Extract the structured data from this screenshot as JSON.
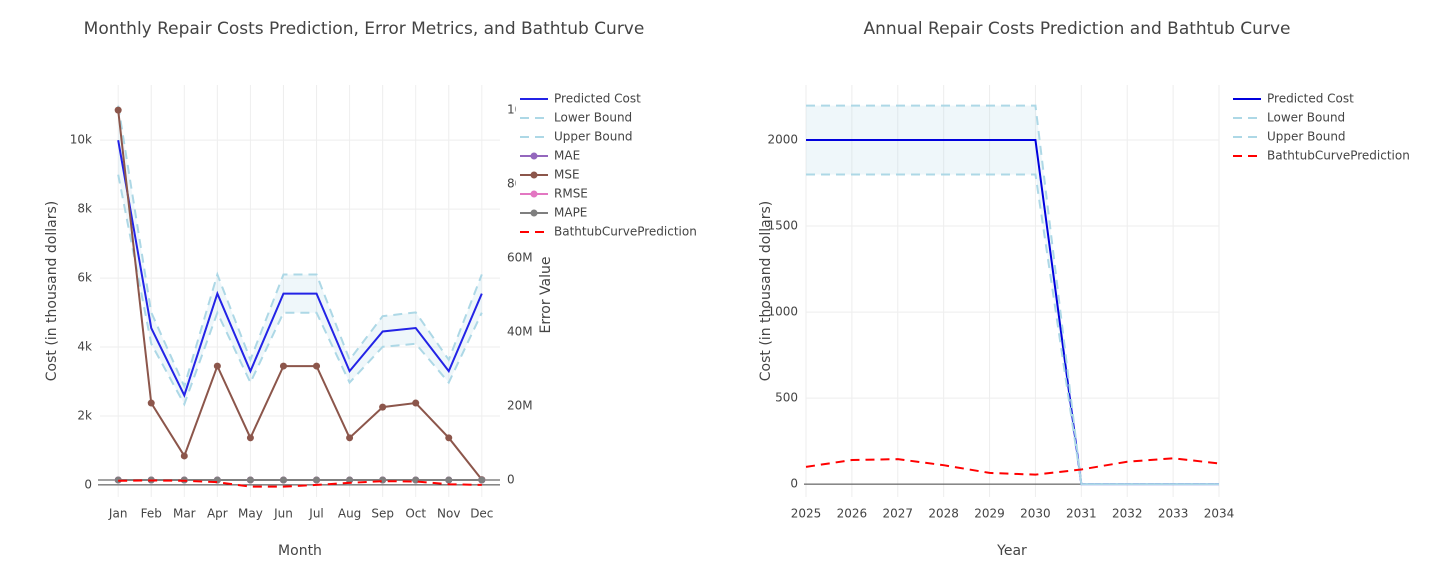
{
  "chart_data": [
    {
      "type": "line",
      "title": "Monthly Repair Costs Prediction, Error Metrics, and Bathtub Curve",
      "x_label": "Month",
      "y_label": "Cost (in thousand dollars)",
      "y2_label": "Error Value",
      "categories": [
        "Jan",
        "Feb",
        "Mar",
        "Apr",
        "May",
        "Jun",
        "Jul",
        "Aug",
        "Sep",
        "Oct",
        "Nov",
        "Dec"
      ],
      "ylim": [
        -350,
        11600
      ],
      "yticks": [
        0,
        {
          "value": 2000,
          "label": "2k"
        },
        {
          "value": 4000,
          "label": "4k"
        },
        {
          "value": 6000,
          "label": "6k"
        },
        {
          "value": 8000,
          "label": "8k"
        },
        {
          "value": 10000,
          "label": "10k"
        }
      ],
      "y2lim": [
        -4600000,
        106800000
      ],
      "y2ticks": [
        0,
        {
          "value": 20000000,
          "label": "20M"
        },
        {
          "value": 40000000,
          "label": "40M"
        },
        {
          "value": 60000000,
          "label": "60M"
        },
        {
          "value": 80000000,
          "label": "80M"
        },
        {
          "value": 100000000,
          "label": "100M"
        }
      ],
      "grid": true,
      "series": [
        {
          "name": "Predicted Cost",
          "color": "#2323e6",
          "dash": "solid",
          "mode": "lines",
          "values": [
            10000,
            4550,
            2600,
            5550,
            3300,
            5550,
            5550,
            3300,
            4450,
            4550,
            3300,
            5550
          ]
        },
        {
          "name": "Lower Bound",
          "color": "#add8e6",
          "dash": "dash",
          "mode": "lines",
          "values": [
            9000,
            4095,
            2340,
            4995,
            2970,
            4995,
            4995,
            2970,
            4005,
            4095,
            2970,
            4995
          ]
        },
        {
          "name": "Upper Bound",
          "color": "#add8e6",
          "dash": "dash",
          "mode": "lines",
          "fill": "tonexty",
          "values": [
            11000,
            5005,
            2860,
            6105,
            3630,
            6105,
            6105,
            3630,
            4895,
            5005,
            3630,
            6105
          ]
        },
        {
          "name": "MAE",
          "color": "#9467bd",
          "dash": "solid",
          "mode": "lines+markers",
          "axis": "y2",
          "values": [
            10000,
            4550,
            2600,
            5550,
            3300,
            5550,
            5550,
            3300,
            4450,
            4550,
            3300,
            300
          ]
        },
        {
          "name": "MSE",
          "color": "#8c564b",
          "dash": "solid",
          "mode": "lines+markers",
          "axis": "y2",
          "values": [
            100000000,
            20800000,
            6500000,
            30800000,
            11400000,
            30800000,
            30800000,
            11400000,
            19700000,
            20800000,
            11400000,
            100000
          ]
        },
        {
          "name": "RMSE",
          "color": "#e377c2",
          "dash": "solid",
          "mode": "lines+markers",
          "axis": "y2",
          "values": [
            10000,
            4560,
            2550,
            5550,
            3380,
            5550,
            5550,
            3380,
            4440,
            4560,
            3380,
            320
          ]
        },
        {
          "name": "MAPE",
          "color": "#7f7f7f",
          "dash": "solid",
          "mode": "lines+markers",
          "axis": "y2",
          "values": [
            100,
            45,
            26,
            55,
            33,
            55,
            55,
            33,
            44,
            45,
            33,
            3
          ]
        },
        {
          "name": "BathtubCurvePrediction",
          "color": "#ff0000",
          "dash": "dash",
          "mode": "lines",
          "values": [
            120,
            130,
            120,
            80,
            -50,
            -50,
            0,
            60,
            110,
            100,
            20,
            0
          ]
        }
      ]
    },
    {
      "type": "line",
      "title": "Annual Repair Costs Prediction and Bathtub Curve",
      "x_label": "Year",
      "y_label": "Cost (in thousand dollars)",
      "x": [
        2025,
        2026,
        2027,
        2028,
        2029,
        2030,
        2031,
        2032,
        2033,
        2034
      ],
      "xlim": [
        2025,
        2034
      ],
      "xticks": [
        2025,
        2026,
        2027,
        2028,
        2029,
        2030,
        2031,
        2032,
        2033,
        2034
      ],
      "ylim": [
        -75,
        2320
      ],
      "yticks": [
        0,
        500,
        1000,
        1500,
        2000
      ],
      "grid": true,
      "series": [
        {
          "name": "Predicted Cost",
          "color": "#0000dd",
          "dash": "solid",
          "mode": "lines",
          "values": [
            2000,
            2000,
            2000,
            2000,
            2000,
            2000,
            0,
            0,
            0,
            0
          ]
        },
        {
          "name": "Lower Bound",
          "color": "#add8e6",
          "dash": "dash",
          "mode": "lines",
          "values": [
            1800,
            1800,
            1800,
            1800,
            1800,
            1800,
            0,
            0,
            0,
            0
          ]
        },
        {
          "name": "Upper Bound",
          "color": "#add8e6",
          "dash": "dash",
          "mode": "lines",
          "fill": "tonexty",
          "values": [
            2200,
            2200,
            2200,
            2200,
            2200,
            2200,
            0,
            0,
            0,
            0
          ]
        },
        {
          "name": "BathtubCurvePrediction",
          "color": "#ff0000",
          "dash": "dash",
          "mode": "lines",
          "values": [
            100,
            140,
            145,
            110,
            65,
            55,
            85,
            130,
            150,
            120
          ]
        }
      ]
    }
  ]
}
